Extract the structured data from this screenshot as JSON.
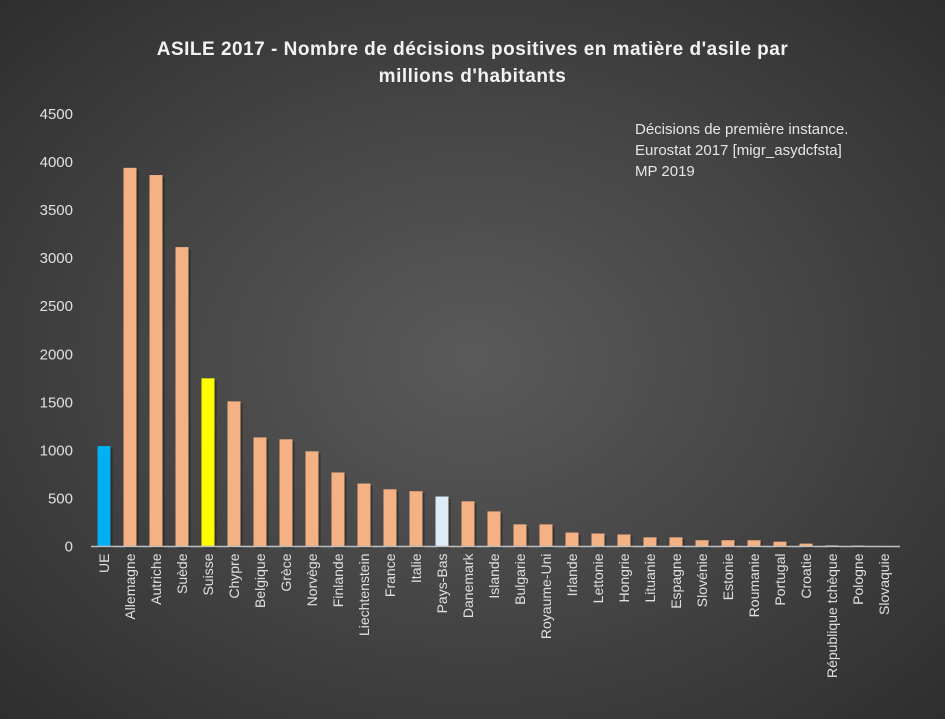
{
  "chart_data": {
    "type": "bar",
    "title": "ASILE 2017 - Nombre de décisions positives en matière d'asile par millions d'habitants",
    "title_lines": [
      "ASILE 2017 - Nombre de décisions positives en matière d'asile par",
      "millions d'habitants"
    ],
    "annotation": [
      "Décisions de première instance.",
      "Eurostat 2017 [migr_asydcfsta]",
      "MP 2019"
    ],
    "xlabel": "",
    "ylabel": "",
    "ylim": [
      0,
      4500
    ],
    "yticks": [
      0,
      500,
      1000,
      1500,
      2000,
      2500,
      3000,
      3500,
      4000,
      4500
    ],
    "grid": false,
    "categories": [
      "UE",
      "Allemagne",
      "Autriche",
      "Suède",
      "Suisse",
      "Chypre",
      "Belgique",
      "Grèce",
      "Norvège",
      "Finlande",
      "Liechtenstein",
      "France",
      "Italie",
      "Pays-Bas",
      "Danemark",
      "Islande",
      "Bulgarie",
      "Royaume-Uni",
      "Irlande",
      "Lettonie",
      "Hongrie",
      "Lituanie",
      "Espagne",
      "Slovénie",
      "Estonie",
      "Roumanie",
      "Portugal",
      "Croatie",
      "République tchèque",
      "Pologne",
      "Slovaquie"
    ],
    "values": [
      1045,
      3940,
      3865,
      3115,
      1750,
      1510,
      1135,
      1115,
      990,
      770,
      655,
      595,
      575,
      520,
      470,
      365,
      230,
      230,
      145,
      135,
      125,
      95,
      95,
      65,
      65,
      65,
      50,
      30,
      12,
      10,
      5
    ],
    "colors": {
      "default": "#f4b183",
      "UE": "#00b0f0",
      "Suisse": "#ffff00",
      "Pays-Bas": "#deebf7"
    },
    "axis_color": "#bfbfbf"
  }
}
